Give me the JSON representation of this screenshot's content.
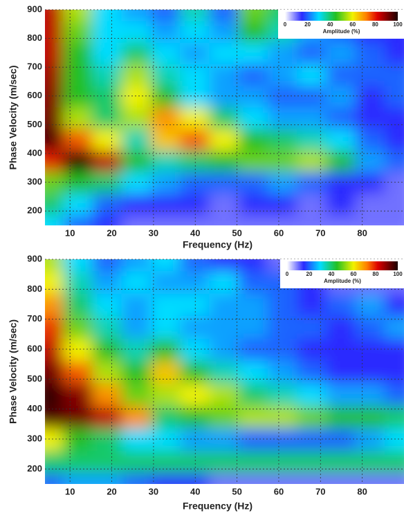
{
  "chart_data": [
    {
      "type": "heatmap",
      "xlabel": "Frequency (Hz)",
      "ylabel": "Phase Velocity (m/sec)",
      "x": [
        5,
        12,
        19,
        26,
        33,
        40,
        47,
        54,
        61,
        68,
        75,
        82,
        89
      ],
      "y": [
        150,
        225,
        300,
        375,
        450,
        525,
        600,
        675,
        750,
        825,
        900
      ],
      "values": [
        [
          30,
          20,
          15,
          10,
          10,
          10,
          10,
          10,
          10,
          10,
          10,
          10,
          10
        ],
        [
          40,
          30,
          20,
          15,
          15,
          15,
          10,
          15,
          15,
          10,
          15,
          10,
          10
        ],
        [
          50,
          45,
          40,
          30,
          25,
          20,
          20,
          20,
          25,
          20,
          15,
          15,
          10
        ],
        [
          80,
          100,
          85,
          45,
          35,
          40,
          45,
          50,
          50,
          55,
          45,
          25,
          20
        ],
        [
          95,
          75,
          60,
          35,
          65,
          75,
          60,
          45,
          40,
          35,
          30,
          20,
          15
        ],
        [
          92,
          55,
          40,
          55,
          70,
          60,
          40,
          30,
          25,
          25,
          20,
          15,
          15
        ],
        [
          90,
          45,
          40,
          60,
          45,
          30,
          25,
          25,
          20,
          20,
          25,
          15,
          20
        ],
        [
          88,
          45,
          35,
          55,
          35,
          30,
          25,
          20,
          25,
          30,
          20,
          20,
          20
        ],
        [
          85,
          45,
          30,
          40,
          30,
          25,
          30,
          30,
          25,
          20,
          25,
          20,
          15
        ],
        [
          85,
          50,
          30,
          30,
          25,
          30,
          25,
          45,
          35,
          25,
          20,
          15,
          15
        ],
        [
          85,
          55,
          30,
          25,
          20,
          35,
          20,
          50,
          40,
          20,
          25,
          10,
          20
        ]
      ],
      "xlim": [
        4,
        90
      ],
      "ylim": [
        150,
        900
      ],
      "xticks": [
        10,
        20,
        30,
        40,
        50,
        60,
        70,
        80
      ],
      "yticks": [
        200,
        300,
        400,
        500,
        600,
        700,
        800,
        900
      ],
      "grid": true,
      "colorscale": [
        [
          0,
          "#ffffff"
        ],
        [
          15,
          "#2a2aff"
        ],
        [
          30,
          "#00dcff"
        ],
        [
          45,
          "#22c022"
        ],
        [
          60,
          "#f2f200"
        ],
        [
          72,
          "#ff8000"
        ],
        [
          82,
          "#dd0000"
        ],
        [
          100,
          "#1a0000"
        ]
      ],
      "colorbar": {
        "label": "Amplitude (%)",
        "lim": [
          0,
          100
        ],
        "ticks": [
          0,
          20,
          40,
          60,
          80,
          100
        ]
      }
    },
    {
      "type": "heatmap",
      "xlabel": "Frequency (Hz)",
      "ylabel": "Phase Velocity (m/sec)",
      "x": [
        5,
        12,
        19,
        26,
        33,
        40,
        47,
        54,
        61,
        68,
        75,
        82,
        89
      ],
      "y": [
        150,
        225,
        300,
        375,
        450,
        525,
        600,
        675,
        750,
        825,
        900
      ],
      "values": [
        [
          20,
          25,
          25,
          20,
          15,
          15,
          10,
          10,
          10,
          10,
          10,
          10,
          10
        ],
        [
          40,
          40,
          40,
          40,
          40,
          40,
          40,
          40,
          40,
          40,
          40,
          40,
          40
        ],
        [
          60,
          45,
          40,
          30,
          30,
          25,
          25,
          20,
          20,
          20,
          20,
          25,
          30
        ],
        [
          95,
          92,
          85,
          70,
          40,
          45,
          50,
          55,
          55,
          50,
          45,
          45,
          40
        ],
        [
          98,
          90,
          70,
          50,
          55,
          60,
          55,
          40,
          35,
          30,
          25,
          25,
          20
        ],
        [
          92,
          75,
          55,
          45,
          65,
          45,
          35,
          30,
          25,
          20,
          15,
          15,
          15
        ],
        [
          85,
          60,
          45,
          35,
          45,
          30,
          25,
          20,
          20,
          15,
          15,
          15,
          15
        ],
        [
          78,
          50,
          35,
          25,
          30,
          25,
          25,
          25,
          20,
          20,
          15,
          20,
          25
        ],
        [
          70,
          40,
          30,
          25,
          30,
          30,
          25,
          25,
          20,
          15,
          20,
          25,
          15
        ],
        [
          60,
          35,
          25,
          30,
          25,
          25,
          30,
          20,
          20,
          15,
          10,
          10,
          10
        ],
        [
          55,
          30,
          20,
          25,
          30,
          20,
          15,
          15,
          10,
          10,
          10,
          10,
          10
        ]
      ],
      "xlim": [
        4,
        90
      ],
      "ylim": [
        150,
        900
      ],
      "xticks": [
        10,
        20,
        30,
        40,
        50,
        60,
        70,
        80
      ],
      "yticks": [
        200,
        300,
        400,
        500,
        600,
        700,
        800,
        900
      ],
      "grid": true,
      "colorscale": [
        [
          0,
          "#ffffff"
        ],
        [
          15,
          "#2a2aff"
        ],
        [
          30,
          "#00dcff"
        ],
        [
          45,
          "#22c022"
        ],
        [
          60,
          "#f2f200"
        ],
        [
          72,
          "#ff8000"
        ],
        [
          82,
          "#dd0000"
        ],
        [
          100,
          "#1a0000"
        ]
      ],
      "colorbar": {
        "label": "Amplitude (%)",
        "lim": [
          0,
          100
        ],
        "ticks": [
          0,
          20,
          40,
          60,
          80,
          100
        ]
      }
    }
  ]
}
